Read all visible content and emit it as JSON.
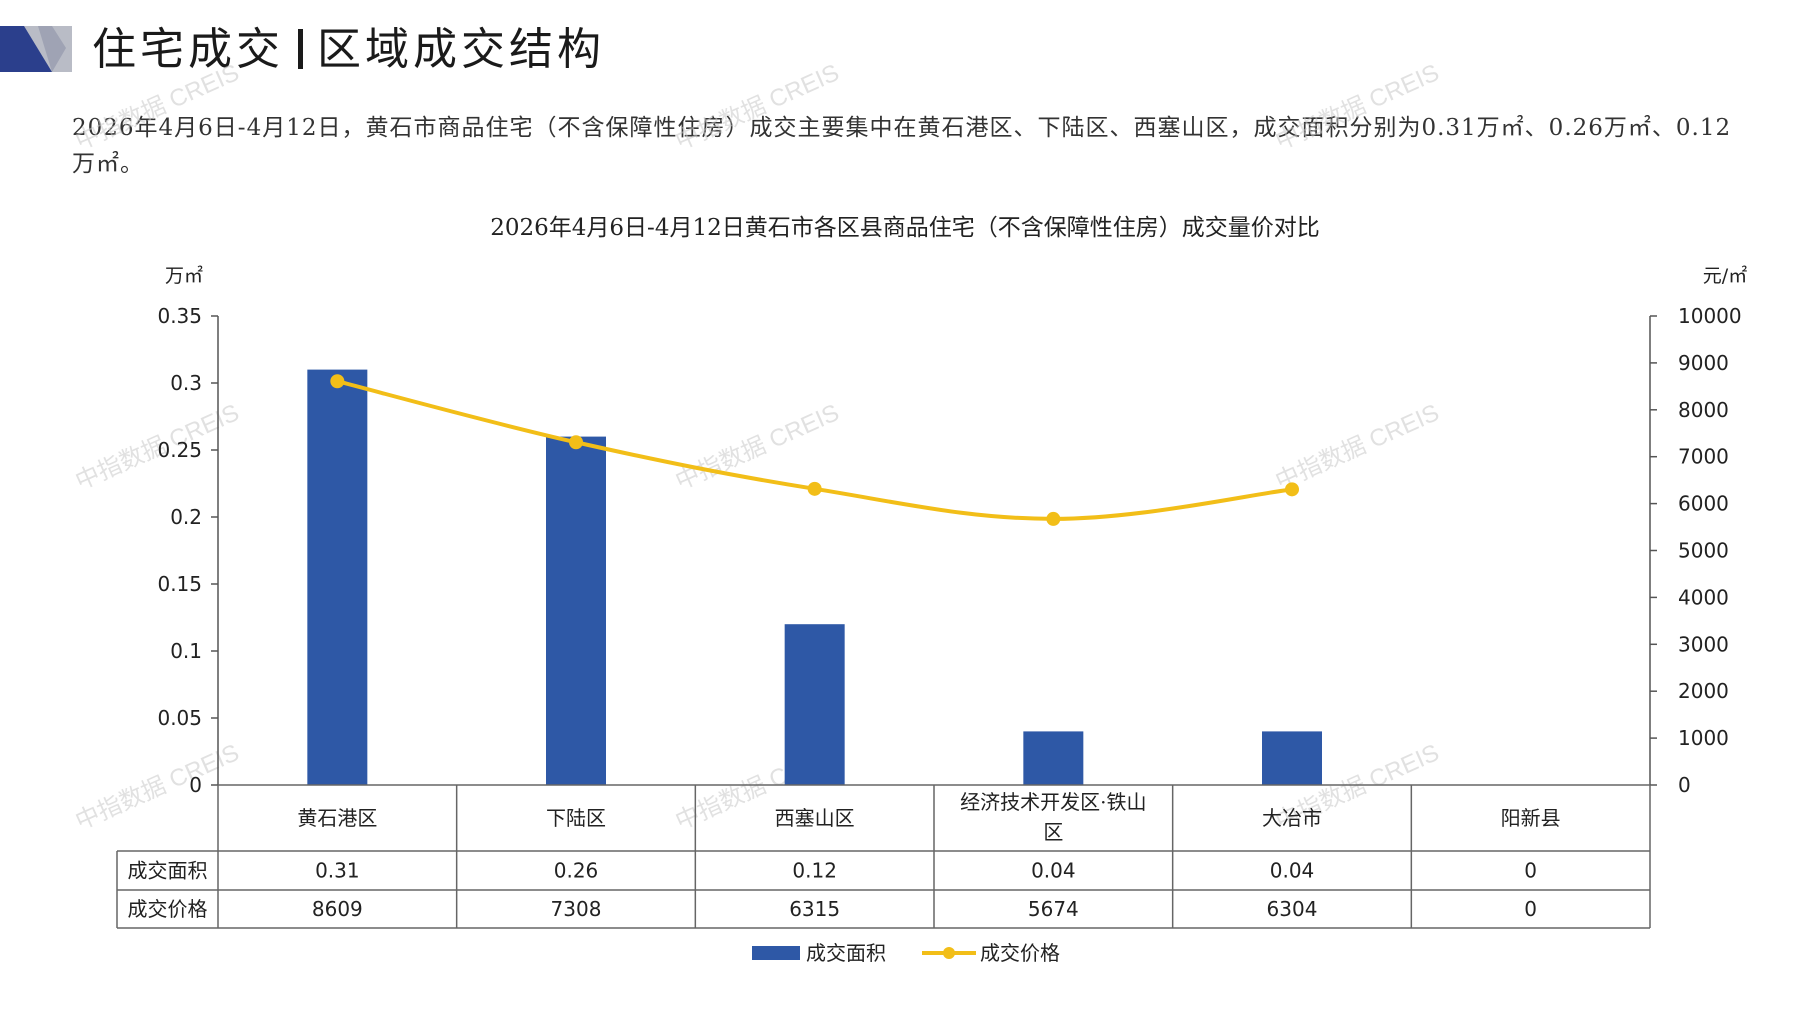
{
  "page": {
    "title_left": "住宅成交",
    "title_right": "区域成交结构",
    "summary": "2026年4月6日-4月12日，黄石市商品住宅（不含保障性住房）成交主要集中在黄石港区、下陆区、西塞山区，成交面积分别为0.31万㎡、0.26万㎡、0.12万㎡。",
    "watermark": "中指数据 CREIS"
  },
  "colors": {
    "bar": "#2E58A6",
    "line": "#F2BE18",
    "header_navy": "#2B3F8C",
    "header_gray": "#B9BCC6"
  },
  "chart_data": {
    "type": "bar",
    "title": "2026年4月6日-4月12日黄石市各区县商品住宅（不含保障性住房）成交量价对比",
    "categories": [
      "黄石港区",
      "下陆区",
      "西塞山区",
      "经济技术开发区·铁山区",
      "大冶市",
      "阳新县"
    ],
    "series": [
      {
        "name": "成交面积",
        "type": "bar",
        "axis": "left",
        "values": [
          0.31,
          0.26,
          0.12,
          0.04,
          0.04,
          0
        ]
      },
      {
        "name": "成交价格",
        "type": "line",
        "axis": "right",
        "values": [
          8609,
          7308,
          6315,
          5674,
          6304,
          0
        ]
      }
    ],
    "left_axis": {
      "unit": "万㎡",
      "ylim": [
        0,
        0.35
      ],
      "ticks": [
        "0",
        "0.05",
        "0.1",
        "0.15",
        "0.2",
        "0.25",
        "0.3",
        "0.35"
      ]
    },
    "right_axis": {
      "unit": "元/㎡",
      "ylim": [
        0,
        10000
      ],
      "ticks": [
        "0",
        "1000",
        "2000",
        "3000",
        "4000",
        "5000",
        "6000",
        "7000",
        "8000",
        "9000",
        "10000"
      ]
    },
    "table": {
      "rows": [
        {
          "label": "成交面积",
          "values": [
            "0.31",
            "0.26",
            "0.12",
            "0.04",
            "0.04",
            "0"
          ]
        },
        {
          "label": "成交价格",
          "values": [
            "8609",
            "7308",
            "6315",
            "5674",
            "6304",
            "0"
          ]
        }
      ]
    },
    "legend": {
      "placement": "bottom",
      "items": [
        "成交面积",
        "成交价格"
      ]
    },
    "grid": false
  }
}
